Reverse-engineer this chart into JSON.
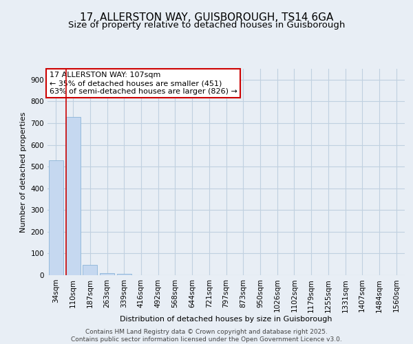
{
  "title1": "17, ALLERSTON WAY, GUISBOROUGH, TS14 6GA",
  "title2": "Size of property relative to detached houses in Guisborough",
  "xlabel": "Distribution of detached houses by size in Guisborough",
  "ylabel": "Number of detached properties",
  "categories": [
    "34sqm",
    "110sqm",
    "187sqm",
    "263sqm",
    "339sqm",
    "416sqm",
    "492sqm",
    "568sqm",
    "644sqm",
    "721sqm",
    "797sqm",
    "873sqm",
    "950sqm",
    "1026sqm",
    "1102sqm",
    "1179sqm",
    "1255sqm",
    "1331sqm",
    "1407sqm",
    "1484sqm",
    "1560sqm"
  ],
  "values": [
    529,
    727,
    48,
    10,
    7,
    0,
    0,
    0,
    0,
    0,
    0,
    0,
    0,
    0,
    0,
    0,
    0,
    0,
    0,
    0,
    0
  ],
  "bar_color": "#c5d8f0",
  "bar_edge_color": "#8ab4d8",
  "vline_color": "#cc0000",
  "annotation_text": "17 ALLERSTON WAY: 107sqm\n← 35% of detached houses are smaller (451)\n63% of semi-detached houses are larger (826) →",
  "annotation_box_color": "#cc0000",
  "annotation_facecolor": "#ffffff",
  "ylim": [
    0,
    950
  ],
  "yticks": [
    0,
    100,
    200,
    300,
    400,
    500,
    600,
    700,
    800,
    900
  ],
  "grid_color": "#c0d0e0",
  "background_color": "#e8eef5",
  "footer_text": "Contains HM Land Registry data © Crown copyright and database right 2025.\nContains public sector information licensed under the Open Government Licence v3.0.",
  "title_fontsize": 11,
  "subtitle_fontsize": 9.5,
  "axis_label_fontsize": 8,
  "tick_fontsize": 7.5,
  "annotation_fontsize": 8,
  "footer_fontsize": 6.5
}
